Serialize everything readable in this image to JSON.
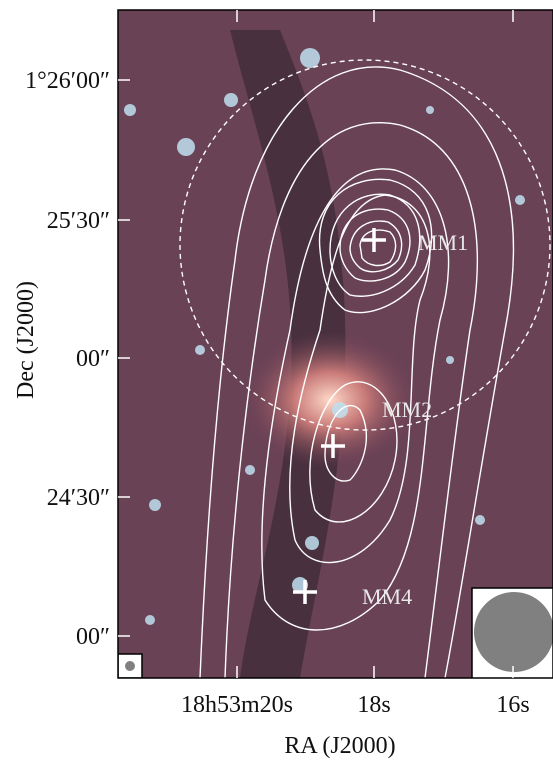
{
  "figure": {
    "x_label": "RA (J2000)",
    "y_label": "Dec (J2000)",
    "x_ticks": [
      "18h53m20s",
      "18s",
      "16s"
    ],
    "y_ticks": [
      "1°26′00″",
      "25′30″",
      "00″",
      "24′30″",
      "00″"
    ],
    "sources": [
      "MM1",
      "MM2",
      "MM4"
    ]
  }
}
